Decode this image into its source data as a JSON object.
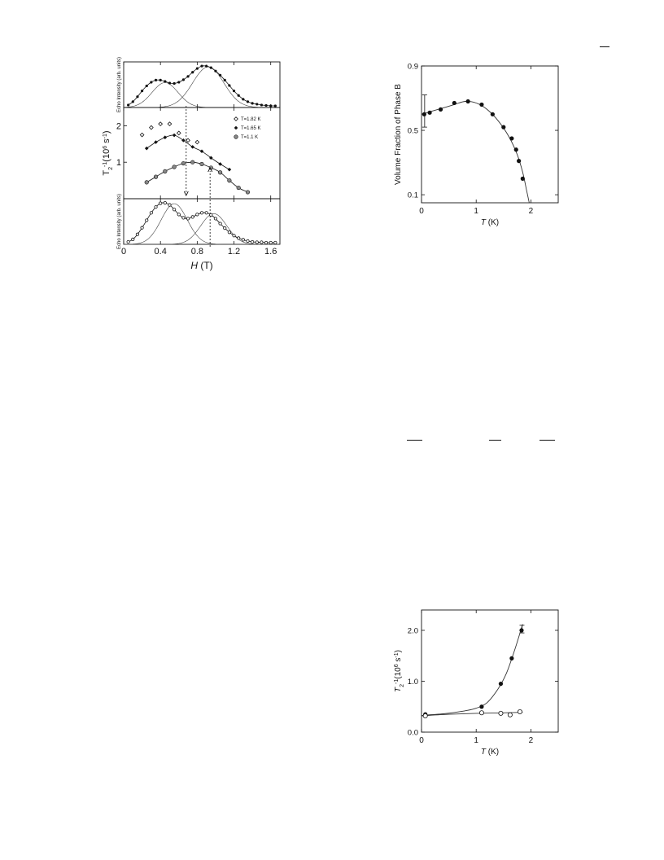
{
  "page": {
    "dash_marks": [
      "",
      "",
      "",
      ""
    ]
  },
  "chart_data": [
    {
      "id": "fig1",
      "type": "scatter",
      "panels": [
        {
          "name": "top",
          "ylabel": "Echo Intensity (arb. units)",
          "xlim": [
            0,
            1.7
          ],
          "ylim": [
            0,
            1.1
          ],
          "series": [
            {
              "name": "data",
              "style": "filled-small",
              "x": [
                0.05,
                0.1,
                0.15,
                0.2,
                0.25,
                0.3,
                0.35,
                0.4,
                0.45,
                0.5,
                0.55,
                0.6,
                0.65,
                0.7,
                0.75,
                0.8,
                0.85,
                0.9,
                0.95,
                1.0,
                1.05,
                1.1,
                1.15,
                1.2,
                1.25,
                1.3,
                1.35,
                1.4,
                1.45,
                1.5,
                1.55,
                1.6,
                1.65
              ],
              "y": [
                0.06,
                0.14,
                0.26,
                0.4,
                0.52,
                0.61,
                0.66,
                0.66,
                0.63,
                0.59,
                0.58,
                0.61,
                0.67,
                0.75,
                0.85,
                0.94,
                1.0,
                1.0,
                0.96,
                0.88,
                0.78,
                0.66,
                0.53,
                0.4,
                0.29,
                0.2,
                0.14,
                0.1,
                0.08,
                0.06,
                0.05,
                0.04,
                0.04
              ]
            },
            {
              "name": "fit-peak-1",
              "type": "line",
              "center": 0.45,
              "width": 0.2,
              "amp": 0.6
            },
            {
              "name": "fit-peak-2",
              "type": "line",
              "center": 0.92,
              "width": 0.24,
              "amp": 0.98
            }
          ]
        },
        {
          "name": "middle",
          "ylabel": "T2-1(106 s-1)",
          "xlim": [
            0,
            1.7
          ],
          "ylim": [
            0,
            2.5
          ],
          "yticks": [
            1,
            2
          ],
          "legend": [
            "T=1.82 K",
            "T=1.65 K",
            "T=1.1 K"
          ],
          "series": [
            {
              "name": "T=1.82 K",
              "marker": "open-diamond",
              "x": [
                0.2,
                0.3,
                0.4,
                0.5,
                0.6,
                0.7,
                0.8
              ],
              "y": [
                1.75,
                1.95,
                2.05,
                2.05,
                1.8,
                1.6,
                1.55
              ]
            },
            {
              "name": "T=1.65 K",
              "marker": "filled-diamond",
              "x": [
                0.25,
                0.35,
                0.45,
                0.55,
                0.65,
                0.75,
                0.85,
                0.95,
                1.05,
                1.15
              ],
              "y": [
                1.38,
                1.55,
                1.68,
                1.74,
                1.6,
                1.42,
                1.3,
                1.12,
                0.95,
                0.8
              ]
            },
            {
              "name": "T=1.1 K",
              "marker": "circle-dot",
              "x": [
                0.25,
                0.35,
                0.45,
                0.55,
                0.65,
                0.75,
                0.85,
                0.95,
                1.05,
                1.15,
                1.25,
                1.35
              ],
              "y": [
                0.45,
                0.6,
                0.75,
                0.87,
                0.97,
                1.0,
                0.95,
                0.85,
                0.72,
                0.5,
                0.3,
                0.18
              ]
            }
          ],
          "arrows": [
            {
              "x": 0.68,
              "dir": "down"
            },
            {
              "x": 0.94,
              "dir": "up"
            }
          ]
        },
        {
          "name": "bottom",
          "ylabel": "Echo Intensity (arb. units)",
          "xlabel": "H (T)",
          "xlim": [
            0,
            1.7
          ],
          "ylim": [
            0,
            1.1
          ],
          "xticks": [
            0,
            0.4,
            0.8,
            1.2,
            1.6
          ],
          "xtick_labels": [
            "0",
            "0.4",
            "0.8",
            "1.2",
            "1.6"
          ],
          "series": [
            {
              "name": "data",
              "style": "open-small",
              "x": [
                0.05,
                0.1,
                0.15,
                0.2,
                0.25,
                0.3,
                0.35,
                0.4,
                0.45,
                0.5,
                0.55,
                0.6,
                0.65,
                0.7,
                0.75,
                0.8,
                0.85,
                0.9,
                0.95,
                1.0,
                1.05,
                1.1,
                1.15,
                1.2,
                1.25,
                1.3,
                1.35,
                1.4,
                1.45,
                1.5,
                1.55,
                1.6,
                1.65
              ],
              "y": [
                0.06,
                0.12,
                0.24,
                0.4,
                0.58,
                0.76,
                0.9,
                0.99,
                1.0,
                0.95,
                0.84,
                0.72,
                0.64,
                0.62,
                0.66,
                0.72,
                0.76,
                0.76,
                0.71,
                0.62,
                0.5,
                0.39,
                0.29,
                0.21,
                0.15,
                0.11,
                0.08,
                0.06,
                0.05,
                0.05,
                0.04,
                0.04,
                0.04
              ]
            },
            {
              "name": "fit-peak-1",
              "type": "line",
              "center": 0.55,
              "width": 0.2,
              "amp": 0.98
            },
            {
              "name": "fit-peak-2",
              "type": "line",
              "center": 0.98,
              "width": 0.2,
              "amp": 0.74
            }
          ]
        }
      ]
    },
    {
      "id": "fig2",
      "type": "line",
      "ylabel": "Volume Fraction of Phase B",
      "xlabel": "T (K)",
      "xlim": [
        0,
        2.5
      ],
      "ylim": [
        0.05,
        0.9
      ],
      "xticks": [
        0,
        1,
        2
      ],
      "xtick_labels": [
        "0",
        "1",
        "2"
      ],
      "yticks": [
        0.1,
        0.5,
        0.9
      ],
      "ytick_labels": [
        "0.1",
        "0.5",
        "0.9"
      ],
      "series": [
        {
          "name": "data",
          "marker": "filled-circle",
          "x": [
            0.05,
            0.15,
            0.35,
            0.6,
            0.85,
            1.1,
            1.3,
            1.5,
            1.65,
            1.73,
            1.78,
            1.85
          ],
          "y": [
            0.6,
            0.61,
            0.63,
            0.67,
            0.68,
            0.66,
            0.6,
            0.52,
            0.45,
            0.38,
            0.31,
            0.2
          ],
          "error_bar": {
            "x": 0.05,
            "y": 0.6,
            "lo": 0.52,
            "hi": 0.72
          }
        }
      ],
      "fit": {
        "x": [
          0.0,
          0.2,
          0.4,
          0.6,
          0.8,
          1.0,
          1.2,
          1.4,
          1.6,
          1.75,
          1.85,
          1.92,
          1.97
        ],
        "y": [
          0.6,
          0.62,
          0.64,
          0.66,
          0.68,
          0.67,
          0.63,
          0.56,
          0.46,
          0.35,
          0.24,
          0.13,
          0.05
        ]
      }
    },
    {
      "id": "fig3",
      "type": "line",
      "ylabel": "T2-1(106 s-1)",
      "xlabel": "T (K)",
      "xlim": [
        0,
        2.5
      ],
      "ylim": [
        0,
        2.4
      ],
      "xticks": [
        0,
        1,
        2
      ],
      "xtick_labels": [
        "0",
        "1",
        "2"
      ],
      "yticks": [
        0.0,
        1.0,
        2.0
      ],
      "ytick_labels": [
        "0.0",
        "1.0",
        "2.0"
      ],
      "series": [
        {
          "name": "filled",
          "marker": "filled-circle",
          "x": [
            0.07,
            1.1,
            1.45,
            1.65,
            1.83
          ],
          "y": [
            0.35,
            0.5,
            0.95,
            1.45,
            2.0
          ],
          "error_bar": {
            "x": 1.83,
            "y": 2.0,
            "lo": 1.95,
            "hi": 2.1
          }
        },
        {
          "name": "open",
          "marker": "open-circle",
          "x": [
            0.07,
            1.1,
            1.45,
            1.62,
            1.8
          ],
          "y": [
            0.32,
            0.38,
            0.37,
            0.34,
            0.4
          ]
        }
      ],
      "fits": [
        {
          "x": [
            0.0,
            0.4,
            0.8,
            1.0,
            1.2,
            1.4,
            1.55,
            1.7,
            1.85
          ],
          "y": [
            0.33,
            0.36,
            0.42,
            0.47,
            0.58,
            0.85,
            1.15,
            1.6,
            2.12
          ]
        },
        {
          "x": [
            0.0,
            0.5,
            1.0,
            1.5,
            1.85
          ],
          "y": [
            0.32,
            0.35,
            0.37,
            0.38,
            0.39
          ]
        }
      ]
    }
  ]
}
